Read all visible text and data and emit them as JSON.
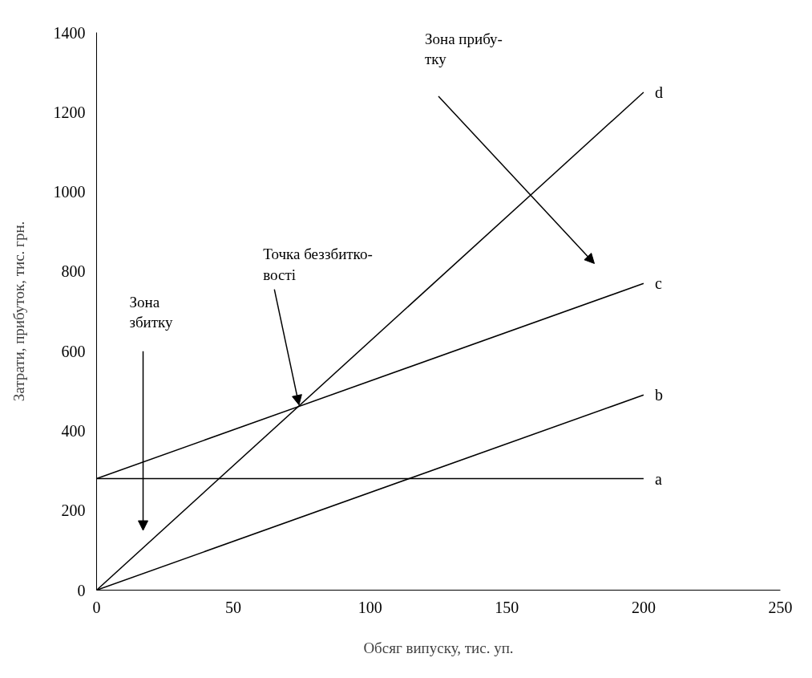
{
  "chart_data": {
    "type": "line",
    "xlabel": "Обсяг випуску, тис. уп.",
    "ylabel": "Затрати, прибуток, тис. грн.",
    "x": [
      0,
      200
    ],
    "series": [
      {
        "name": "a",
        "color": "#000000",
        "values": [
          280,
          280
        ]
      },
      {
        "name": "b",
        "color": "#000000",
        "values": [
          0,
          490
        ]
      },
      {
        "name": "c",
        "color": "#000000",
        "values": [
          280,
          770
        ]
      },
      {
        "name": "d",
        "color": "#000000",
        "values": [
          0,
          1250
        ]
      }
    ],
    "xlim": [
      0,
      250
    ],
    "xticks": [
      0,
      50,
      100,
      150,
      200,
      250
    ],
    "ylim": [
      0,
      1400
    ],
    "yticks": [
      0,
      200,
      400,
      600,
      800,
      1000,
      1200,
      1400
    ],
    "grid": false,
    "marker": "none",
    "line_style": "solid",
    "annotations": [
      "Зона\nзбитку",
      {
        "text": "Точка беззбитко-\nвості",
        "x": 74,
        "y": 465
      },
      "Зона прибу-\nтку"
    ]
  }
}
